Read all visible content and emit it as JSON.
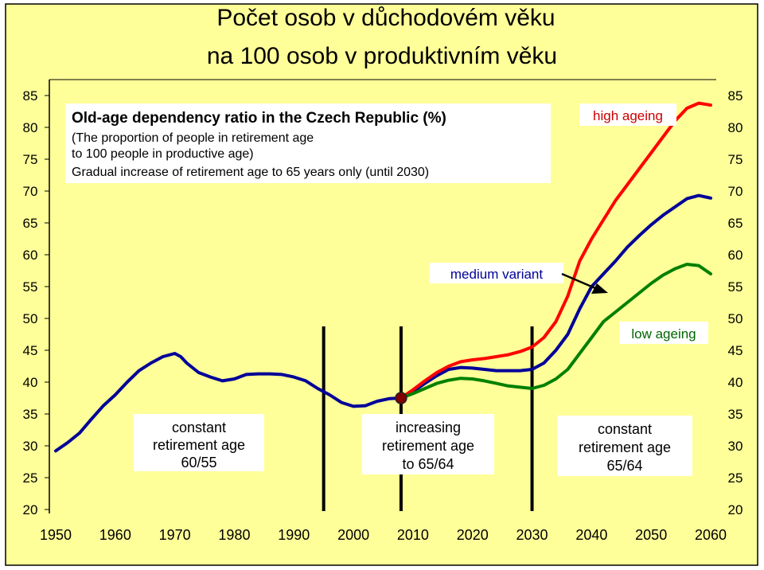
{
  "title_line1": "Počet osob v důchodovém věku",
  "title_line2": "na 100 osob v produktivním věku",
  "info_box": {
    "line1": "Old-age dependency ratio in the Czech Republic (%)",
    "line2": "(The proportion of people in retirement age",
    "line3": "to 100 people in productive age)",
    "line4": "Gradual increase of retirement age to 65 years only (until 2030)"
  },
  "annotations": {
    "high": "high ageing",
    "medium": "medium variant",
    "low": "low ageing"
  },
  "periods": [
    {
      "line1": "constant",
      "line2": "retirement age",
      "line3": "60/55"
    },
    {
      "line1": "increasing",
      "line2": "retirement age",
      "line3": "to 65/64"
    },
    {
      "line1": "constant",
      "line2": "retirement age",
      "line3": "65/64"
    }
  ],
  "colors": {
    "background": "#ffff99",
    "border": "#000000",
    "medium": "#000099",
    "high": "#ff0000",
    "low": "#008000",
    "marker": "#800000"
  },
  "chart_data": {
    "type": "line",
    "title": "Old-age dependency ratio in the Czech Republic (%)",
    "xlim": [
      1950,
      2060
    ],
    "ylim": [
      20,
      85
    ],
    "x_ticks": [
      1950,
      1960,
      1970,
      1980,
      1990,
      2000,
      2010,
      2020,
      2030,
      2040,
      2050,
      2060
    ],
    "y_ticks": [
      20,
      25,
      30,
      35,
      40,
      45,
      50,
      55,
      60,
      65,
      70,
      75,
      80,
      85
    ],
    "vertical_markers": [
      1995,
      2008,
      2030
    ],
    "highlight_point": [
      2008,
      37.5
    ],
    "series": [
      {
        "name": "medium variant",
        "color": "#000099",
        "x": [
          1950,
          1952,
          1954,
          1956,
          1958,
          1960,
          1962,
          1964,
          1966,
          1968,
          1970,
          1971,
          1972,
          1974,
          1976,
          1978,
          1980,
          1982,
          1984,
          1986,
          1988,
          1990,
          1992,
          1994,
          1996,
          1998,
          2000,
          2002,
          2004,
          2006,
          2008,
          2010,
          2012,
          2014,
          2016,
          2018,
          2020,
          2022,
          2024,
          2026,
          2028,
          2030,
          2032,
          2034,
          2036,
          2038,
          2040,
          2042,
          2044,
          2046,
          2048,
          2050,
          2052,
          2054,
          2056,
          2058,
          2060
        ],
        "y": [
          29.2,
          30.5,
          32.0,
          34.2,
          36.3,
          38.0,
          40.0,
          41.8,
          43.0,
          44.0,
          44.5,
          44.0,
          43.0,
          41.5,
          40.8,
          40.2,
          40.5,
          41.2,
          41.3,
          41.3,
          41.2,
          40.8,
          40.2,
          39.0,
          38.0,
          36.8,
          36.2,
          36.3,
          37.0,
          37.4,
          37.5,
          38.5,
          39.8,
          41.0,
          42.0,
          42.3,
          42.2,
          42.0,
          41.8,
          41.8,
          41.8,
          42.0,
          43.0,
          45.0,
          47.5,
          51.5,
          55.0,
          57.0,
          59.0,
          61.2,
          63.0,
          64.7,
          66.2,
          67.5,
          68.8,
          69.3,
          68.9
        ]
      },
      {
        "name": "high ageing",
        "color": "#ff0000",
        "x": [
          2008,
          2010,
          2012,
          2014,
          2016,
          2018,
          2020,
          2022,
          2024,
          2026,
          2028,
          2030,
          2032,
          2034,
          2036,
          2038,
          2040,
          2042,
          2044,
          2046,
          2048,
          2050,
          2052,
          2054,
          2056,
          2058,
          2060
        ],
        "y": [
          37.5,
          38.8,
          40.2,
          41.5,
          42.5,
          43.2,
          43.5,
          43.7,
          44.0,
          44.3,
          44.8,
          45.5,
          47.0,
          49.5,
          53.5,
          59.0,
          62.5,
          65.5,
          68.5,
          71.0,
          73.5,
          76.0,
          78.5,
          81.0,
          83.0,
          83.8,
          83.5
        ]
      },
      {
        "name": "low ageing",
        "color": "#008000",
        "x": [
          2008,
          2010,
          2012,
          2014,
          2016,
          2018,
          2020,
          2022,
          2024,
          2026,
          2028,
          2030,
          2032,
          2034,
          2036,
          2038,
          2040,
          2042,
          2044,
          2046,
          2048,
          2050,
          2052,
          2054,
          2056,
          2058,
          2060
        ],
        "y": [
          37.5,
          38.2,
          39.0,
          39.8,
          40.3,
          40.6,
          40.5,
          40.2,
          39.8,
          39.4,
          39.2,
          39.0,
          39.5,
          40.5,
          42.0,
          44.5,
          47.0,
          49.5,
          51.0,
          52.5,
          54.0,
          55.5,
          56.8,
          57.8,
          58.5,
          58.3,
          57.0
        ]
      }
    ]
  }
}
